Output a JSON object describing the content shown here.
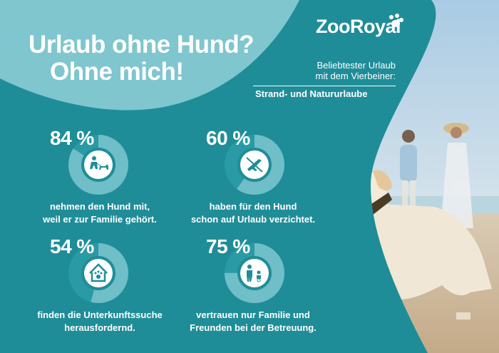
{
  "brand": {
    "name": "ZooRoyal"
  },
  "headline": {
    "line1": "Urlaub ohne Hund?",
    "line2": "Ohne mich!"
  },
  "favorite": {
    "label_line1": "Beliebtester Urlaub",
    "label_line2": "mit dem Vierbeiner:",
    "answer": "Strand- und Natururlaube"
  },
  "stats": [
    {
      "value": "84 %",
      "fraction": 0.84,
      "icon": "person-with-dog-icon",
      "text_line1": "nehmen den Hund mit,",
      "text_line2": "weil er zur Familie gehört."
    },
    {
      "value": "60 %",
      "fraction": 0.6,
      "icon": "no-travel-icon",
      "text_line1": "haben für den Hund",
      "text_line2": "schon auf Urlaub verzichtet."
    },
    {
      "value": "54 %",
      "fraction": 0.54,
      "icon": "dog-house-icon",
      "text_line1": "finden die Unterkunftssuche",
      "text_line2": "herausfordernd."
    },
    {
      "value": "75 %",
      "fraction": 0.75,
      "icon": "family-icon",
      "text_line1": "vertrauen nur Familie und",
      "text_line2": "Freunden bei der Betreuung."
    }
  ],
  "colors": {
    "teal": "#1f8d98",
    "light_teal": "#7fc6cf",
    "ring": "#6fbec8",
    "white": "#ffffff"
  }
}
